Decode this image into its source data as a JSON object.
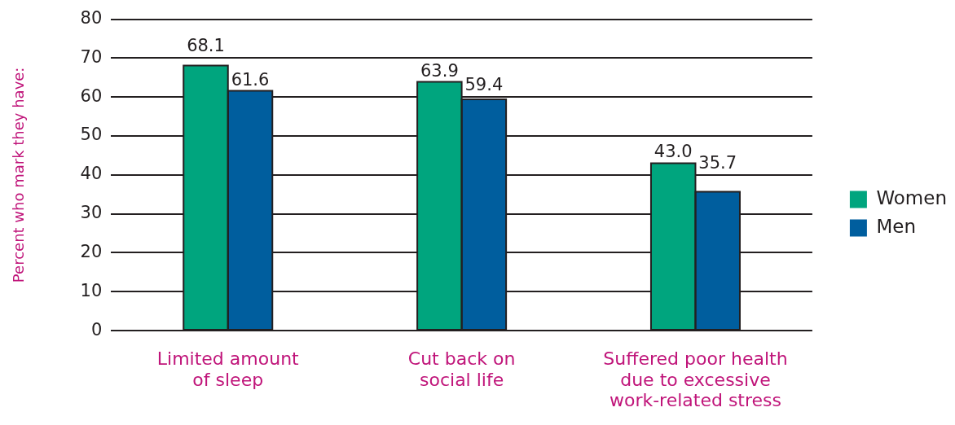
{
  "chart_data": {
    "type": "bar",
    "ylabel": "Percent who mark they have:",
    "categories": [
      "Limited amount of sleep",
      "Cut back on social life",
      "Suffered poor health due to excessive work-related stress"
    ],
    "series": [
      {
        "name": "Women",
        "color": "#00a57e",
        "values": [
          68.1,
          63.9,
          43.0
        ],
        "value_labels": [
          "68.1",
          "63.9",
          "43.0"
        ]
      },
      {
        "name": "Men",
        "color": "#005e9e",
        "values": [
          61.6,
          59.4,
          35.7
        ],
        "value_labels": [
          "61.6",
          "59.4",
          "35.7"
        ]
      }
    ],
    "ylim": [
      0,
      80
    ],
    "yticks": [
      0,
      10,
      20,
      30,
      40,
      50,
      60,
      70,
      80
    ],
    "grid": "y",
    "legend": "right"
  }
}
